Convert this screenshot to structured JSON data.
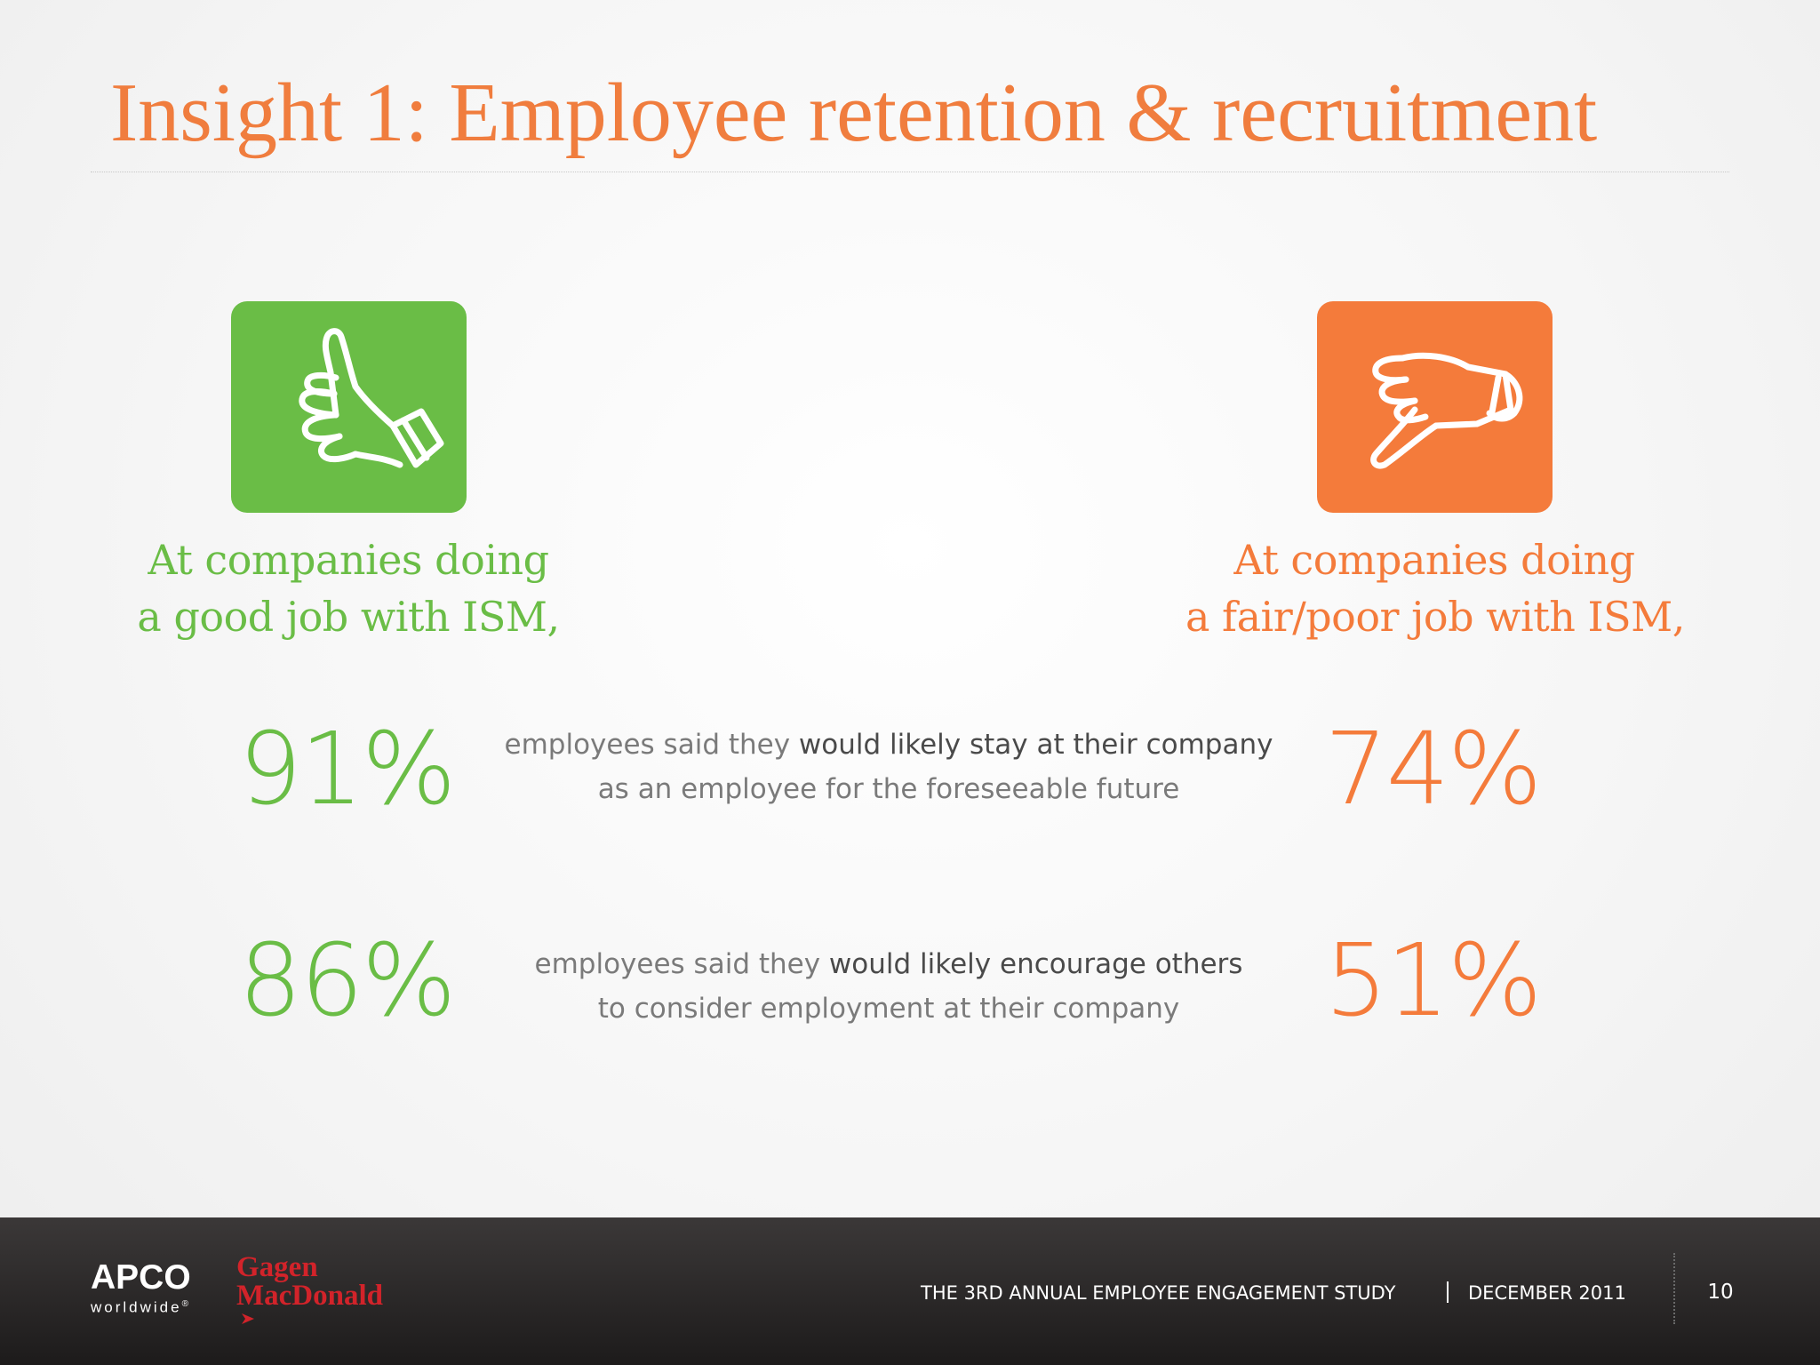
{
  "slide": {
    "title": "Insight 1: Employee retention & recruitment"
  },
  "groups": {
    "good": {
      "icon": "thumbs-up-icon",
      "color": "#6abd46",
      "label_line1": "At companies doing",
      "label_line2": "a good job with ISM,"
    },
    "poor": {
      "icon": "thumbs-down-icon",
      "color": "#f47b3b",
      "label_line1": "At companies doing",
      "label_line2": "a fair/poor job with ISM,"
    }
  },
  "stats": [
    {
      "good_value": "91%",
      "poor_value": "74%",
      "line1_plain": "employees said they ",
      "line1_bold": "would likely stay at their company",
      "line2": "as an employee for the foreseeable future"
    },
    {
      "good_value": "86%",
      "poor_value": "51%",
      "line1_plain": "employees said they ",
      "line1_bold": "would likely encourage others",
      "line2": "to consider employment at their company"
    }
  ],
  "footer": {
    "apco_name": "APCO",
    "apco_sub": "worldwide",
    "apco_reg": "®",
    "gm_line1": "Gagen",
    "gm_line2": "MacDonald",
    "study": "THE 3RD ANNUAL EMPLOYEE ENGAGEMENT STUDY",
    "date": "DECEMBER  2011",
    "page_number": "10"
  },
  "colors": {
    "title": "#f07d3e",
    "good": "#6abd46",
    "poor": "#f47b3b",
    "footer_bg": "#262424",
    "gm_red": "#d2232a"
  }
}
